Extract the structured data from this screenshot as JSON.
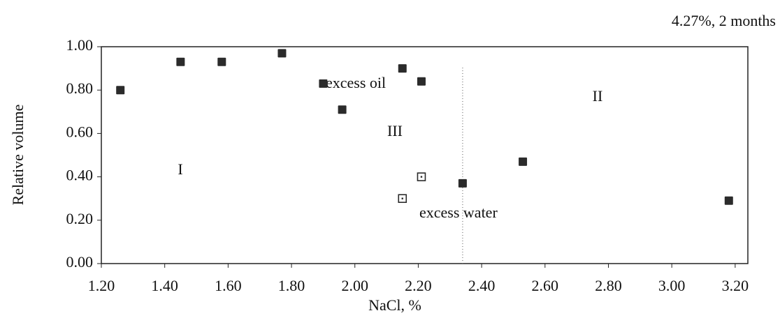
{
  "chart_data": {
    "type": "scatter",
    "subtitle": "4.27%, 2 months",
    "xlabel": "NaCl, %",
    "ylabel": "Relative volume",
    "xlim": [
      1.2,
      3.24
    ],
    "ylim": [
      0,
      1
    ],
    "xticks": [
      {
        "value": 1.2,
        "label": "1.20"
      },
      {
        "value": 1.4,
        "label": "1.40"
      },
      {
        "value": 1.6,
        "label": "1.60"
      },
      {
        "value": 1.8,
        "label": "1.80"
      },
      {
        "value": 2.0,
        "label": "2.00"
      },
      {
        "value": 2.2,
        "label": "2.20"
      },
      {
        "value": 2.4,
        "label": "2.40"
      },
      {
        "value": 2.6,
        "label": "2.60"
      },
      {
        "value": 2.8,
        "label": "2.80"
      },
      {
        "value": 3.0,
        "label": "3.00"
      },
      {
        "value": 3.2,
        "label": "3.20"
      }
    ],
    "yticks": [
      {
        "value": 0,
        "label": "0.00"
      },
      {
        "value": 0.2,
        "label": "0.20"
      },
      {
        "value": 0.4,
        "label": "0.40"
      },
      {
        "value": 0.6,
        "label": "0.60"
      },
      {
        "value": 0.8,
        "label": "0.80"
      },
      {
        "value": 1.0,
        "label": "1.00"
      }
    ],
    "series": [
      {
        "marker": "filled",
        "color": "#2b2b2b",
        "x": [
          1.26,
          1.45,
          1.58,
          1.77,
          1.9,
          1.96,
          2.15,
          2.21,
          2.34,
          2.53,
          3.18
        ],
        "values": [
          0.8,
          0.93,
          0.93,
          0.97,
          0.83,
          0.71,
          0.9,
          0.84,
          0.37,
          0.47,
          0.29
        ]
      },
      {
        "marker": "open",
        "color": "#2b2b2b",
        "x": [
          2.15,
          2.21
        ],
        "values": [
          0.3,
          0.4
        ]
      }
    ],
    "vline": 2.34,
    "annotations": [
      "excess oil",
      "III",
      "I",
      "II",
      "excess water"
    ]
  }
}
